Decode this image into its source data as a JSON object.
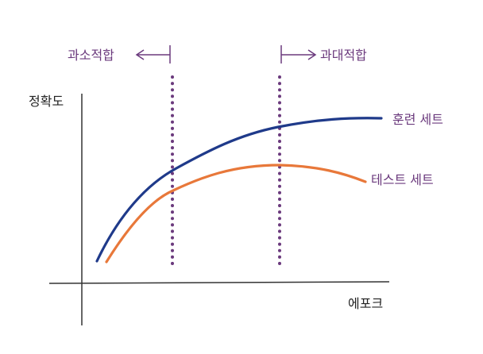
{
  "labels": {
    "y_axis": "정확도",
    "x_axis": "에포크",
    "underfitting": "과소적합",
    "overfitting": "과대적합",
    "train_set": "훈련 세트",
    "test_set": "테스트 세트"
  },
  "colors": {
    "train_curve": "#1f3a8a",
    "test_curve": "#e8783a",
    "divider": "#6b3a7d",
    "axis": "#333333"
  }
}
